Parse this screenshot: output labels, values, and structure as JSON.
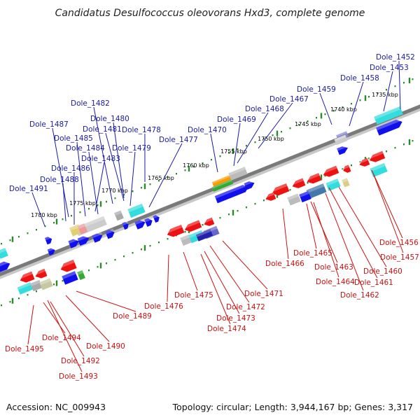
{
  "title": "Candidatus Desulfococcus oleovorans Hxd3, complete genome",
  "footer": {
    "accession": "Accession: NC_009943",
    "summary": "Topology: circular; Length: 3,944,167 bp; Genes: 3,317"
  },
  "colors": {
    "forward_label": "#1a1aa8",
    "reverse_label": "#cc1111",
    "forward_gene": "#1010ee",
    "reverse_gene": "#ee1111",
    "backbone": "#7a7a7a",
    "tick": "#2a8a2a"
  },
  "kbp_labels": [
    "1735 kbp",
    "1740 kbp",
    "1745 kbp",
    "1750 kbp",
    "1755 kbp",
    "1760 kbp",
    "1765 kbp",
    "1770 kbp",
    "1775 kbp",
    "1780 kbp"
  ],
  "forward_genes": [
    "Dole_1452",
    "Dole_1453",
    "Dole_1458",
    "Dole_1459",
    "Dole_1467",
    "Dole_1468",
    "Dole_1469",
    "Dole_1470",
    "Dole_1477",
    "Dole_1478",
    "Dole_1479",
    "Dole_1480",
    "Dole_1481",
    "Dole_1482",
    "Dole_1483",
    "Dole_1484",
    "Dole_1485",
    "Dole_1486",
    "Dole_1487",
    "Dole_1488",
    "Dole_1491"
  ],
  "reverse_genes": [
    "Dole_1456",
    "Dole_1457",
    "Dole_1460",
    "Dole_1461",
    "Dole_1462",
    "Dole_1463",
    "Dole_1464",
    "Dole_1465",
    "Dole_1466",
    "Dole_1471",
    "Dole_1472",
    "Dole_1473",
    "Dole_1474",
    "Dole_1475",
    "Dole_1476",
    "Dole_1489",
    "Dole_1490",
    "Dole_1492",
    "Dole_1493",
    "Dole_1494",
    "Dole_1495"
  ]
}
